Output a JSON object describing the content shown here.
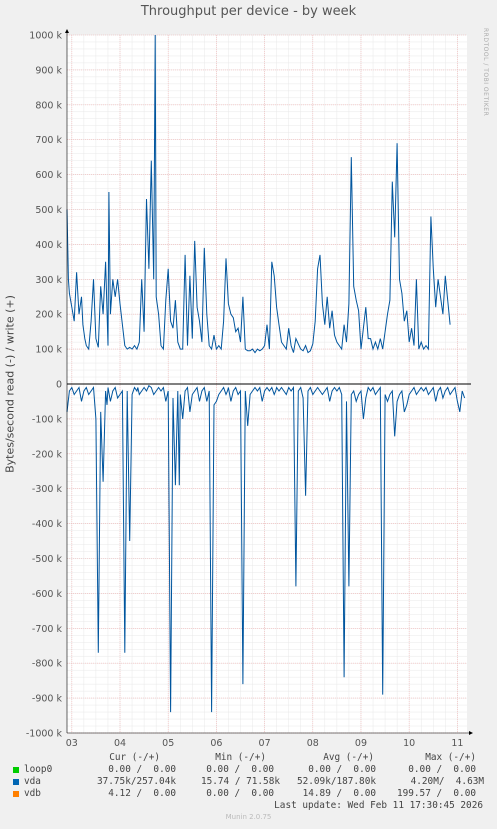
{
  "chart_data": {
    "type": "line",
    "title": "Throughput per device - by week",
    "ylabel": "Bytes/second read (-) / write (+)",
    "side_text": "RRDTOOL / TOBI OETIKER",
    "x_ticks": [
      "03",
      "04",
      "05",
      "06",
      "07",
      "08",
      "09",
      "10",
      "11"
    ],
    "x_tick_positions_days": [
      0.65,
      1.65,
      2.65,
      3.65,
      4.65,
      5.65,
      6.65,
      7.65,
      8.65
    ],
    "x_range_days": [
      0.55,
      8.85
    ],
    "y_ticks": [
      "1000 k",
      "900 k",
      "800 k",
      "700 k",
      "600 k",
      "500 k",
      "400 k",
      "300 k",
      "200 k",
      "100 k",
      "0",
      "-100 k",
      "-200 k",
      "-300 k",
      "-400 k",
      "-500 k",
      "-600 k",
      "-700 k",
      "-800 k",
      "-900 k",
      "-1000 k"
    ],
    "ylim": [
      -1000000,
      1000000
    ],
    "grid": true,
    "series": [
      {
        "name": "vda",
        "color": "#00559e",
        "write_days": [
          0.55,
          0.58,
          0.6,
          0.65,
          0.7,
          0.75,
          0.8,
          0.85,
          0.88,
          0.92,
          0.95,
          1.0,
          1.05,
          1.1,
          1.15,
          1.2,
          1.25,
          1.3,
          1.35,
          1.4,
          1.42,
          1.45,
          1.5,
          1.55,
          1.6,
          1.65,
          1.7,
          1.75,
          1.8,
          1.85,
          1.9,
          1.95,
          2.0,
          2.05,
          2.1,
          2.15,
          2.2,
          2.25,
          2.3,
          2.35,
          2.38,
          2.4,
          2.45,
          2.5,
          2.55,
          2.6,
          2.65,
          2.7,
          2.75,
          2.8,
          2.85,
          2.9,
          2.95,
          3.0,
          3.05,
          3.1,
          3.15,
          3.2,
          3.25,
          3.3,
          3.35,
          3.4,
          3.45,
          3.5,
          3.55,
          3.6,
          3.65,
          3.7,
          3.75,
          3.8,
          3.85,
          3.9,
          3.95,
          4.0,
          4.05,
          4.1,
          4.15,
          4.2,
          4.25,
          4.3,
          4.35,
          4.4,
          4.45,
          4.5,
          4.55,
          4.6,
          4.65,
          4.7,
          4.75,
          4.8,
          4.85,
          4.9,
          4.95,
          5.0,
          5.05,
          5.1,
          5.15,
          5.2,
          5.25,
          5.3,
          5.35,
          5.4,
          5.45,
          5.5,
          5.55,
          5.6,
          5.65,
          5.7,
          5.75,
          5.8,
          5.85,
          5.9,
          5.95,
          6.0,
          6.05,
          6.1,
          6.15,
          6.2,
          6.25,
          6.3,
          6.35,
          6.4,
          6.45,
          6.5,
          6.55,
          6.6,
          6.65,
          6.7,
          6.75,
          6.8,
          6.85,
          6.9,
          6.95,
          7.0,
          7.05,
          7.1,
          7.15,
          7.2,
          7.25,
          7.3,
          7.35,
          7.4,
          7.45,
          7.5,
          7.55,
          7.6,
          7.65,
          7.7,
          7.75,
          7.8,
          7.85,
          7.9,
          7.95,
          8.0,
          8.05,
          8.1,
          8.15,
          8.2,
          8.25,
          8.3,
          8.35,
          8.4,
          8.45,
          8.5,
          8.55,
          8.6,
          8.65,
          8.7,
          8.75,
          8.8
        ],
        "write_values": [
          500000,
          300000,
          260000,
          220000,
          180000,
          320000,
          200000,
          250000,
          170000,
          130000,
          110000,
          100000,
          180000,
          300000,
          130000,
          105000,
          280000,
          200000,
          350000,
          110000,
          550000,
          200000,
          300000,
          250000,
          300000,
          230000,
          170000,
          110000,
          100000,
          105000,
          100000,
          110000,
          100000,
          120000,
          300000,
          150000,
          530000,
          330000,
          640000,
          300000,
          1000000,
          250000,
          200000,
          110000,
          100000,
          240000,
          330000,
          180000,
          160000,
          240000,
          120000,
          100000,
          100000,
          370000,
          110000,
          310000,
          130000,
          410000,
          220000,
          180000,
          120000,
          390000,
          200000,
          110000,
          100000,
          140000,
          100000,
          110000,
          100000,
          180000,
          360000,
          230000,
          200000,
          190000,
          150000,
          160000,
          120000,
          250000,
          100000,
          95000,
          95000,
          100000,
          90000,
          100000,
          95000,
          100000,
          110000,
          170000,
          100000,
          350000,
          310000,
          220000,
          170000,
          120000,
          110000,
          100000,
          160000,
          110000,
          90000,
          130000,
          115000,
          100000,
          95000,
          110000,
          90000,
          95000,
          115000,
          180000,
          330000,
          370000,
          230000,
          170000,
          250000,
          160000,
          210000,
          140000,
          120000,
          110000,
          100000,
          170000,
          120000,
          230000,
          650000,
          280000,
          240000,
          210000,
          100000,
          160000,
          220000,
          130000,
          130000,
          100000,
          120000,
          100000,
          130000,
          100000,
          150000,
          200000,
          240000,
          580000,
          420000,
          690000,
          300000,
          260000,
          180000,
          210000,
          120000,
          160000,
          110000,
          300000,
          100000,
          120000,
          100000,
          110000,
          100000,
          480000,
          330000,
          220000,
          300000,
          250000,
          200000,
          310000,
          240000,
          170000
        ]
      },
      {
        "name": "vda",
        "color": "#00559e",
        "read_days": [
          0.55,
          0.6,
          0.65,
          0.7,
          0.75,
          0.8,
          0.85,
          0.9,
          0.95,
          1.0,
          1.05,
          1.1,
          1.15,
          1.2,
          1.25,
          1.3,
          1.35,
          1.38,
          1.4,
          1.45,
          1.5,
          1.55,
          1.6,
          1.65,
          1.7,
          1.75,
          1.8,
          1.85,
          1.9,
          1.95,
          2.0,
          2.02,
          2.05,
          2.1,
          2.15,
          2.2,
          2.25,
          2.3,
          2.35,
          2.4,
          2.45,
          2.5,
          2.55,
          2.6,
          2.65,
          2.7,
          2.75,
          2.8,
          2.85,
          2.88,
          2.9,
          2.95,
          3.0,
          3.05,
          3.1,
          3.15,
          3.2,
          3.25,
          3.3,
          3.35,
          3.4,
          3.45,
          3.5,
          3.55,
          3.6,
          3.65,
          3.7,
          3.75,
          3.8,
          3.85,
          3.88,
          3.9,
          3.95,
          4.0,
          4.05,
          4.1,
          4.15,
          4.2,
          4.25,
          4.3,
          4.35,
          4.4,
          4.45,
          4.5,
          4.55,
          4.6,
          4.65,
          4.7,
          4.75,
          4.8,
          4.85,
          4.88,
          4.9,
          4.95,
          5.0,
          5.05,
          5.1,
          5.15,
          5.2,
          5.25,
          5.3,
          5.35,
          5.4,
          5.45,
          5.5,
          5.55,
          5.6,
          5.65,
          5.7,
          5.75,
          5.8,
          5.85,
          5.9,
          5.95,
          6.0,
          6.05,
          6.1,
          6.15,
          6.2,
          6.25,
          6.3,
          6.35,
          6.4,
          6.45,
          6.5,
          6.55,
          6.6,
          6.65,
          6.7,
          6.75,
          6.8,
          6.85,
          6.9,
          6.95,
          7.0,
          7.05,
          7.1,
          7.15,
          7.2,
          7.25,
          7.3,
          7.35,
          7.4,
          7.45,
          7.5,
          7.55,
          7.6,
          7.65,
          7.7,
          7.75,
          7.8,
          7.85,
          7.9,
          7.95,
          8.0,
          8.05,
          8.1,
          8.15,
          8.2,
          8.25,
          8.3,
          8.35,
          8.4,
          8.45,
          8.5,
          8.55,
          8.6,
          8.65,
          8.7,
          8.75,
          8.8
        ],
        "read_values": [
          -80000,
          -20000,
          -10000,
          -30000,
          -20000,
          -10000,
          -50000,
          -20000,
          -10000,
          -30000,
          -20000,
          -10000,
          -100000,
          -770000,
          -80000,
          -280000,
          -20000,
          -60000,
          -10000,
          -50000,
          -20000,
          -10000,
          -40000,
          -30000,
          -20000,
          -770000,
          -20000,
          -450000,
          -30000,
          -10000,
          -20000,
          -10000,
          -30000,
          -20000,
          -10000,
          -20000,
          -5000,
          -10000,
          -30000,
          -20000,
          -10000,
          -20000,
          -10000,
          -50000,
          -20000,
          -940000,
          -40000,
          -290000,
          -20000,
          -290000,
          -30000,
          -100000,
          -20000,
          -10000,
          -80000,
          -30000,
          -20000,
          -10000,
          -50000,
          -20000,
          -10000,
          -50000,
          -20000,
          -940000,
          -60000,
          -50000,
          -30000,
          -20000,
          -10000,
          -30000,
          -20000,
          -10000,
          -50000,
          -20000,
          -10000,
          -30000,
          -20000,
          -860000,
          -20000,
          -120000,
          -30000,
          -20000,
          -10000,
          -20000,
          -10000,
          -50000,
          -20000,
          -10000,
          -20000,
          -10000,
          -30000,
          -20000,
          -10000,
          -20000,
          -10000,
          -20000,
          -30000,
          -10000,
          -20000,
          -10000,
          -580000,
          -20000,
          -10000,
          -40000,
          -320000,
          -20000,
          -10000,
          -30000,
          -20000,
          -10000,
          -20000,
          -30000,
          -20000,
          -10000,
          -50000,
          -20000,
          -10000,
          -20000,
          -10000,
          -30000,
          -840000,
          -50000,
          -580000,
          -30000,
          -20000,
          -50000,
          -30000,
          -20000,
          -100000,
          -40000,
          -10000,
          -20000,
          -10000,
          -30000,
          -20000,
          -10000,
          -890000,
          -30000,
          -50000,
          -30000,
          -20000,
          -150000,
          -50000,
          -30000,
          -20000,
          -80000,
          -60000,
          -30000,
          -20000,
          -10000,
          -30000,
          -20000,
          -10000,
          -20000,
          -10000,
          -30000,
          -20000,
          -10000,
          -50000,
          -20000,
          -10000,
          -40000,
          -20000,
          -10000,
          -30000,
          -20000,
          -10000,
          -50000,
          -80000,
          -20000,
          -40000
        ]
      }
    ]
  },
  "legend": {
    "headers": [
      "Cur (-/+)",
      "Min (-/+)",
      "Avg (-/+)",
      "Max (-/+)"
    ],
    "rows": [
      {
        "name": "loop0",
        "color": "#00cc00",
        "cur": "0.00 /  0.00",
        "min": "0.00 /  0.00",
        "avg": "0.00 /  0.00",
        "max": "0.00 /  0.00"
      },
      {
        "name": "vda",
        "color": "#0066b3",
        "cur": "37.75k/257.04k",
        "min": "15.74 / 71.58k",
        "avg": "52.09k/187.80k",
        "max": "4.20M/  4.63M"
      },
      {
        "name": "vdb",
        "color": "#ff8000",
        "cur": "4.12 /  0.00",
        "min": "0.00 /  0.00",
        "avg": "14.89 /  0.00",
        "max": "199.57 /  0.00"
      }
    ]
  },
  "last_update": "Last update: Wed Feb 11 17:30:45 2026",
  "munin_version": "Munin 2.0.75"
}
